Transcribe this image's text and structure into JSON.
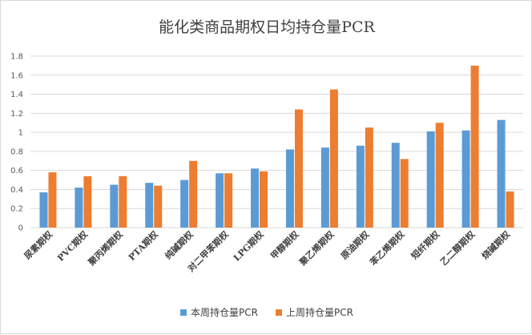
{
  "colors": {
    "this_week": "#5b9bd5",
    "last_week": "#ed7d31",
    "grid": "#d9d9d9"
  },
  "chart_data": {
    "type": "bar",
    "title": "能化类商品期权日均持仓量PCR",
    "xlabel": "",
    "ylabel": "",
    "ylim": [
      0,
      1.8
    ],
    "yticks": [
      "0",
      "0.2",
      "0.4",
      "0.6",
      "0.8",
      "1",
      "1.2",
      "1.4",
      "1.6",
      "1.8"
    ],
    "grid": true,
    "legend_position": "bottom",
    "categories": [
      "尿素期权",
      "PVC期权",
      "聚丙烯期权",
      "PTA期权",
      "纯碱期权",
      "对二甲苯期权",
      "LPG期权",
      "甲醇期权",
      "聚乙烯期权",
      "原油期权",
      "苯乙烯期权",
      "短纤期权",
      "乙二醇期权",
      "烧碱期权"
    ],
    "series": [
      {
        "name": "本周持仓量PCR",
        "values": [
          0.37,
          0.42,
          0.45,
          0.47,
          0.5,
          0.57,
          0.62,
          0.82,
          0.84,
          0.86,
          0.89,
          1.01,
          1.02,
          1.13
        ]
      },
      {
        "name": "上周持仓量PCR",
        "values": [
          0.58,
          0.54,
          0.54,
          0.44,
          0.7,
          0.57,
          0.59,
          1.24,
          1.45,
          1.05,
          0.72,
          1.1,
          1.7,
          0.38
        ]
      }
    ]
  }
}
